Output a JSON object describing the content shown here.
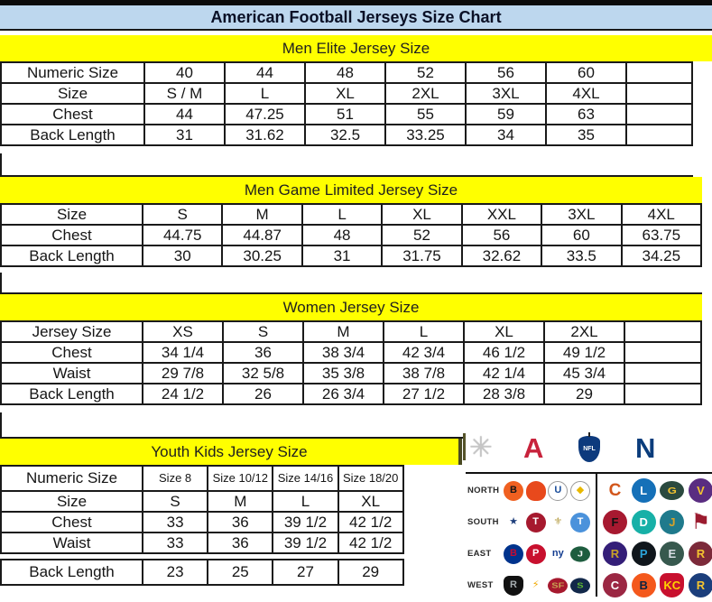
{
  "title": "American Football Jerseys Size Chart",
  "sections": [
    {
      "id": "men-elite",
      "header": "Men Elite Jersey Size",
      "rows": [
        {
          "label": "Numeric Size",
          "values": [
            "40",
            "44",
            "48",
            "52",
            "56",
            "60"
          ]
        },
        {
          "label": "Size",
          "values": [
            "S / M",
            "L",
            "XL",
            "2XL",
            "3XL",
            "4XL"
          ]
        },
        {
          "label": "Chest",
          "values": [
            "44",
            "47.25",
            "51",
            "55",
            "59",
            "63"
          ]
        },
        {
          "label": "Back Length",
          "values": [
            "31",
            "31.62",
            "32.5",
            "33.25",
            "34",
            "35"
          ]
        }
      ]
    },
    {
      "id": "men-game-limited",
      "header": "Men Game Limited Jersey Size",
      "rows": [
        {
          "label": "Size",
          "values": [
            "S",
            "M",
            "L",
            "XL",
            "XXL",
            "3XL",
            "4XL"
          ]
        },
        {
          "label": "Chest",
          "values": [
            "44.75",
            "44.87",
            "48",
            "52",
            "56",
            "60",
            "63.75"
          ]
        },
        {
          "label": "Back Length",
          "values": [
            "30",
            "30.25",
            "31",
            "31.75",
            "32.62",
            "33.5",
            "34.25"
          ]
        }
      ]
    },
    {
      "id": "women",
      "header": "Women Jersey Size",
      "rows": [
        {
          "label": "Jersey Size",
          "values": [
            "XS",
            "S",
            "M",
            "L",
            "XL",
            "2XL"
          ]
        },
        {
          "label": "Chest",
          "values": [
            "34 1/4",
            "36",
            "38 3/4",
            "42 3/4",
            "46 1/2",
            "49 1/2"
          ]
        },
        {
          "label": "Waist",
          "values": [
            "29 7/8",
            "32 5/8",
            "35 3/8",
            "38 7/8",
            "42 1/4",
            "45 3/4"
          ]
        },
        {
          "label": "Back Length",
          "values": [
            "24 1/2",
            "26",
            "26 3/4",
            "27 1/2",
            "28 3/8",
            "29"
          ]
        }
      ]
    },
    {
      "id": "youth-kids",
      "header": "Youth Kids Jersey Size",
      "rows": [
        {
          "label": "Numeric Size",
          "small": true,
          "values": [
            "Size 8",
            "Size 10/12",
            "Size 14/16",
            "Size 18/20"
          ]
        },
        {
          "label": "Size",
          "values": [
            "S",
            "M",
            "L",
            "XL"
          ]
        },
        {
          "label": "Chest",
          "values": [
            "33",
            "36",
            "39 1/2",
            "42 1/2"
          ]
        },
        {
          "label": "Waist",
          "values": [
            "33",
            "36",
            "39 1/2",
            "42 1/2"
          ]
        },
        {
          "label": "Back Length",
          "gap_before": true,
          "values": [
            "23",
            "25",
            "27",
            "29"
          ]
        }
      ]
    }
  ],
  "palette": {
    "title_bg": "#BDD7EE",
    "band_bg": "#FFFF00",
    "grid_border": "#1a1a1a",
    "text": "#151515",
    "afc_red": "#C8233C",
    "nfc_navy": "#0B3D7C",
    "shield_navy": "#0D3A7D",
    "starburst_silver": "#C6C6C6"
  },
  "nfl_panel": {
    "starburst_glyph": "✳",
    "afc_letter": "A",
    "shield_text": "NFL",
    "nfc_letter": "N",
    "row_labels": [
      "NORTH",
      "SOUTH",
      "EAST",
      "WEST"
    ],
    "afc_rows": [
      [
        {
          "name": "bengals",
          "glyph": "B",
          "bg": "#F06020",
          "fg": "#151515",
          "shape": "circle"
        },
        {
          "name": "browns",
          "glyph": "",
          "bg": "#E8491C",
          "fg": "#FFFFFF",
          "shape": "helmet"
        },
        {
          "name": "colts",
          "glyph": "U",
          "bg": "#FFFFFF",
          "fg": "#1B4E9B",
          "shape": "circle-border"
        },
        {
          "name": "steelers",
          "glyph": "◆",
          "bg": "#FFFFFF",
          "fg": "#E8B800",
          "shape": "circle-border"
        }
      ],
      [
        {
          "name": "cowboys",
          "glyph": "★",
          "bg": "",
          "fg": "#1D3E7B",
          "shape": "glyph"
        },
        {
          "name": "texans",
          "glyph": "T",
          "bg": "#A6192E",
          "fg": "#FFFFFF",
          "shape": "circle"
        },
        {
          "name": "saints",
          "glyph": "⚜",
          "bg": "",
          "fg": "#B8A04A",
          "shape": "glyph"
        },
        {
          "name": "titans",
          "glyph": "T",
          "bg": "#4B92DB",
          "fg": "#FFFFFF",
          "shape": "circle"
        }
      ],
      [
        {
          "name": "bills",
          "glyph": "B",
          "bg": "#00338D",
          "fg": "#C60C30",
          "shape": "circle"
        },
        {
          "name": "patriots",
          "glyph": "P",
          "bg": "#C8102E",
          "fg": "#FFFFFF",
          "shape": "circle"
        },
        {
          "name": "giants",
          "glyph": "ny",
          "bg": "",
          "fg": "#123B8F",
          "shape": "glyph-text"
        },
        {
          "name": "jets",
          "glyph": "J",
          "bg": "#1E5D3F",
          "fg": "#FFFFFF",
          "shape": "oval"
        }
      ],
      [
        {
          "name": "raiders",
          "glyph": "R",
          "bg": "#111111",
          "fg": "#A5ACAF",
          "shape": "shield"
        },
        {
          "name": "chargers",
          "glyph": "⚡",
          "bg": "",
          "fg": "#F0A800",
          "shape": "glyph"
        },
        {
          "name": "49ers",
          "glyph": "SF",
          "bg": "#A6192E",
          "fg": "#C7A352",
          "shape": "oval"
        },
        {
          "name": "seahawks",
          "glyph": "S",
          "bg": "#12284A",
          "fg": "#5FB934",
          "shape": "oval"
        }
      ]
    ],
    "nfc_rows": [
      [
        {
          "name": "bears",
          "glyph": "C",
          "bg": "",
          "fg": "#D2561B",
          "shape": "glyph-text"
        },
        {
          "name": "lions",
          "glyph": "L",
          "bg": "#1570B8",
          "fg": "#FFFFFF",
          "shape": "circle"
        },
        {
          "name": "packers",
          "glyph": "G",
          "bg": "#2B4A3F",
          "fg": "#F4C430",
          "shape": "oval"
        },
        {
          "name": "vikings",
          "glyph": "V",
          "bg": "#5A2D81",
          "fg": "#F4C430",
          "shape": "circle"
        }
      ],
      [
        {
          "name": "falcons",
          "glyph": "F",
          "bg": "#A71930",
          "fg": "#111111",
          "shape": "circle"
        },
        {
          "name": "dolphins",
          "glyph": "D",
          "bg": "#17B0A7",
          "fg": "#FFFFFF",
          "shape": "circle"
        },
        {
          "name": "jaguars",
          "glyph": "J",
          "bg": "#1F7A8C",
          "fg": "#D7A22A",
          "shape": "circle"
        },
        {
          "name": "buccaneers",
          "glyph": "⚑",
          "bg": "",
          "fg": "#9B1B2F",
          "shape": "glyph"
        }
      ],
      [
        {
          "name": "ravens",
          "glyph": "R",
          "bg": "#341E78",
          "fg": "#C9A227",
          "shape": "circle"
        },
        {
          "name": "panthers",
          "glyph": "P",
          "bg": "#10161C",
          "fg": "#2BA3DA",
          "shape": "circle"
        },
        {
          "name": "eagles",
          "glyph": "E",
          "bg": "#37594E",
          "fg": "#D8DEE4",
          "shape": "circle"
        },
        {
          "name": "redskins",
          "glyph": "R",
          "bg": "#7C2A3A",
          "fg": "#F4C430",
          "shape": "circle"
        }
      ],
      [
        {
          "name": "cardinals",
          "glyph": "C",
          "bg": "#9B2743",
          "fg": "#FFFFFF",
          "shape": "circle"
        },
        {
          "name": "broncos",
          "glyph": "B",
          "bg": "#F4581C",
          "fg": "#0C2340",
          "shape": "circle"
        },
        {
          "name": "chiefs",
          "glyph": "KC",
          "bg": "#C8102E",
          "fg": "#FFD100",
          "shape": "shield"
        },
        {
          "name": "rams",
          "glyph": "R",
          "bg": "#1B3E7B",
          "fg": "#F4C430",
          "shape": "circle"
        }
      ]
    ]
  }
}
